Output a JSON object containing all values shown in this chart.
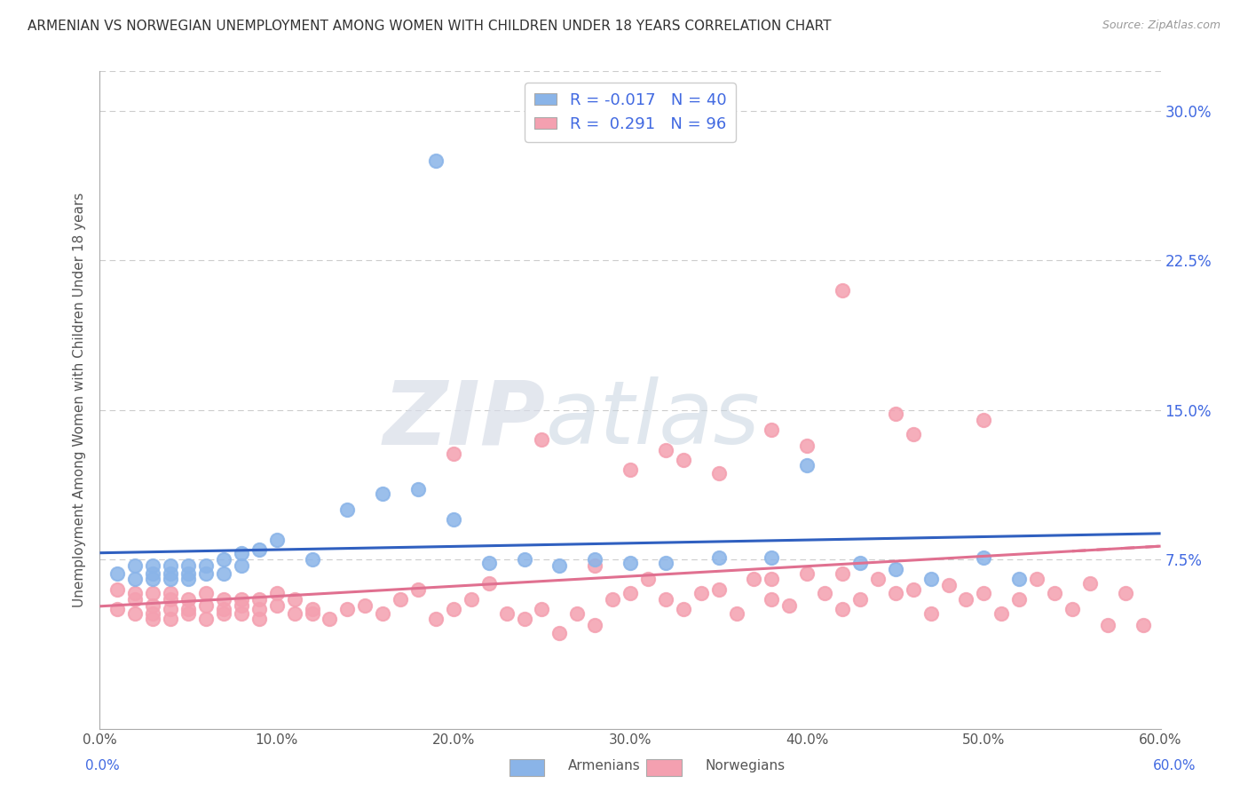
{
  "title": "ARMENIAN VS NORWEGIAN UNEMPLOYMENT AMONG WOMEN WITH CHILDREN UNDER 18 YEARS CORRELATION CHART",
  "source": "Source: ZipAtlas.com",
  "ylabel": "Unemployment Among Women with Children Under 18 years",
  "ytick_labels": [
    "7.5%",
    "15.0%",
    "22.5%",
    "30.0%"
  ],
  "ytick_values": [
    0.075,
    0.15,
    0.225,
    0.3
  ],
  "xlim": [
    0.0,
    0.6
  ],
  "ylim": [
    -0.01,
    0.32
  ],
  "armenian_color": "#8ab4e8",
  "norwegian_color": "#f4a0b0",
  "legend_armenian_R": "-0.017",
  "legend_armenian_N": "40",
  "legend_norwegian_R": "0.291",
  "legend_norwegian_N": "96",
  "trendline_armenian_color": "#3060c0",
  "trendline_norwegian_color": "#e07090",
  "armenian_x": [
    0.01,
    0.02,
    0.02,
    0.03,
    0.03,
    0.03,
    0.04,
    0.04,
    0.04,
    0.05,
    0.05,
    0.05,
    0.06,
    0.06,
    0.07,
    0.07,
    0.08,
    0.08,
    0.09,
    0.1,
    0.12,
    0.14,
    0.16,
    0.18,
    0.2,
    0.22,
    0.24,
    0.26,
    0.28,
    0.3,
    0.32,
    0.35,
    0.38,
    0.4,
    0.43,
    0.45,
    0.47,
    0.5,
    0.52,
    0.19
  ],
  "armenian_y": [
    0.068,
    0.072,
    0.065,
    0.068,
    0.072,
    0.065,
    0.068,
    0.072,
    0.065,
    0.068,
    0.072,
    0.065,
    0.068,
    0.072,
    0.075,
    0.068,
    0.078,
    0.072,
    0.08,
    0.085,
    0.075,
    0.1,
    0.108,
    0.11,
    0.095,
    0.073,
    0.075,
    0.072,
    0.075,
    0.073,
    0.073,
    0.076,
    0.076,
    0.122,
    0.073,
    0.07,
    0.065,
    0.076,
    0.065,
    0.275
  ],
  "norwegian_x": [
    0.01,
    0.01,
    0.02,
    0.02,
    0.02,
    0.03,
    0.03,
    0.03,
    0.03,
    0.04,
    0.04,
    0.04,
    0.04,
    0.05,
    0.05,
    0.05,
    0.06,
    0.06,
    0.06,
    0.07,
    0.07,
    0.07,
    0.08,
    0.08,
    0.08,
    0.09,
    0.09,
    0.09,
    0.1,
    0.1,
    0.11,
    0.11,
    0.12,
    0.12,
    0.13,
    0.14,
    0.15,
    0.16,
    0.17,
    0.18,
    0.19,
    0.2,
    0.21,
    0.22,
    0.23,
    0.24,
    0.25,
    0.26,
    0.27,
    0.28,
    0.29,
    0.3,
    0.31,
    0.32,
    0.33,
    0.34,
    0.35,
    0.36,
    0.37,
    0.38,
    0.39,
    0.4,
    0.41,
    0.42,
    0.43,
    0.44,
    0.45,
    0.46,
    0.47,
    0.48,
    0.49,
    0.5,
    0.51,
    0.52,
    0.53,
    0.54,
    0.55,
    0.56,
    0.57,
    0.58,
    0.59,
    0.33,
    0.38,
    0.42,
    0.46,
    0.5,
    0.3,
    0.35,
    0.4,
    0.45,
    0.2,
    0.25,
    0.28,
    0.32,
    0.38,
    0.42
  ],
  "norwegian_y": [
    0.06,
    0.05,
    0.055,
    0.048,
    0.058,
    0.052,
    0.045,
    0.058,
    0.048,
    0.055,
    0.05,
    0.045,
    0.058,
    0.05,
    0.055,
    0.048,
    0.052,
    0.058,
    0.045,
    0.055,
    0.05,
    0.048,
    0.055,
    0.052,
    0.048,
    0.055,
    0.05,
    0.045,
    0.052,
    0.058,
    0.048,
    0.055,
    0.05,
    0.048,
    0.045,
    0.05,
    0.052,
    0.048,
    0.055,
    0.06,
    0.045,
    0.05,
    0.055,
    0.063,
    0.048,
    0.045,
    0.05,
    0.038,
    0.048,
    0.042,
    0.055,
    0.058,
    0.065,
    0.055,
    0.05,
    0.058,
    0.06,
    0.048,
    0.065,
    0.055,
    0.052,
    0.068,
    0.058,
    0.05,
    0.055,
    0.065,
    0.058,
    0.06,
    0.048,
    0.062,
    0.055,
    0.058,
    0.048,
    0.055,
    0.065,
    0.058,
    0.05,
    0.063,
    0.042,
    0.058,
    0.042,
    0.125,
    0.14,
    0.21,
    0.138,
    0.145,
    0.12,
    0.118,
    0.132,
    0.148,
    0.128,
    0.135,
    0.072,
    0.13,
    0.065,
    0.068
  ]
}
